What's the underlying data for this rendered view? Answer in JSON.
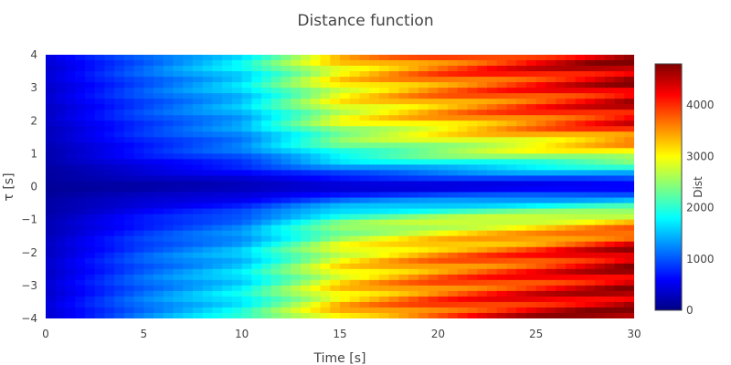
{
  "chart_data": {
    "type": "heatmap",
    "title": "Distance function",
    "xlabel": "Time [s]",
    "ylabel": "τ [s]",
    "xlim": [
      0,
      30
    ],
    "ylim": [
      -4,
      4
    ],
    "x_ticks": [
      "0",
      "5",
      "10",
      "15",
      "20",
      "25",
      "30"
    ],
    "y_ticks": [
      "4",
      "3",
      "2",
      "1",
      "0",
      "−1",
      "−2",
      "−3",
      "−4"
    ],
    "colorscale": "Jet",
    "colorbar": {
      "title": "Dist",
      "range": [
        0,
        4800
      ],
      "ticks": [
        "0",
        "1000",
        "2000",
        "3000",
        "4000"
      ]
    },
    "colors": {
      "background": "#ffffff",
      "text": "#444444"
    },
    "grid": false,
    "description_values": {
      "tau_grid": [
        -4,
        -3,
        -2,
        -1,
        0,
        1,
        2,
        3,
        4
      ],
      "time_grid": [
        0,
        5,
        10,
        15,
        20,
        25,
        30
      ],
      "dist_rows": [
        [
          400,
          1200,
          1900,
          3300,
          3900,
          4400,
          4700
        ],
        [
          350,
          1100,
          1700,
          3100,
          3700,
          4100,
          4500
        ],
        [
          300,
          1000,
          1500,
          2900,
          3500,
          3900,
          4600
        ],
        [
          200,
          700,
          1100,
          2200,
          2600,
          2900,
          3200
        ],
        [
          100,
          150,
          200,
          250,
          300,
          350,
          350
        ],
        [
          200,
          700,
          1100,
          2000,
          2400,
          2700,
          3000
        ],
        [
          300,
          900,
          1400,
          2800,
          3300,
          3800,
          4300
        ],
        [
          350,
          1000,
          1600,
          3000,
          3600,
          4000,
          4500
        ],
        [
          400,
          1100,
          1800,
          3200,
          3800,
          4300,
          4700
        ]
      ]
    }
  }
}
